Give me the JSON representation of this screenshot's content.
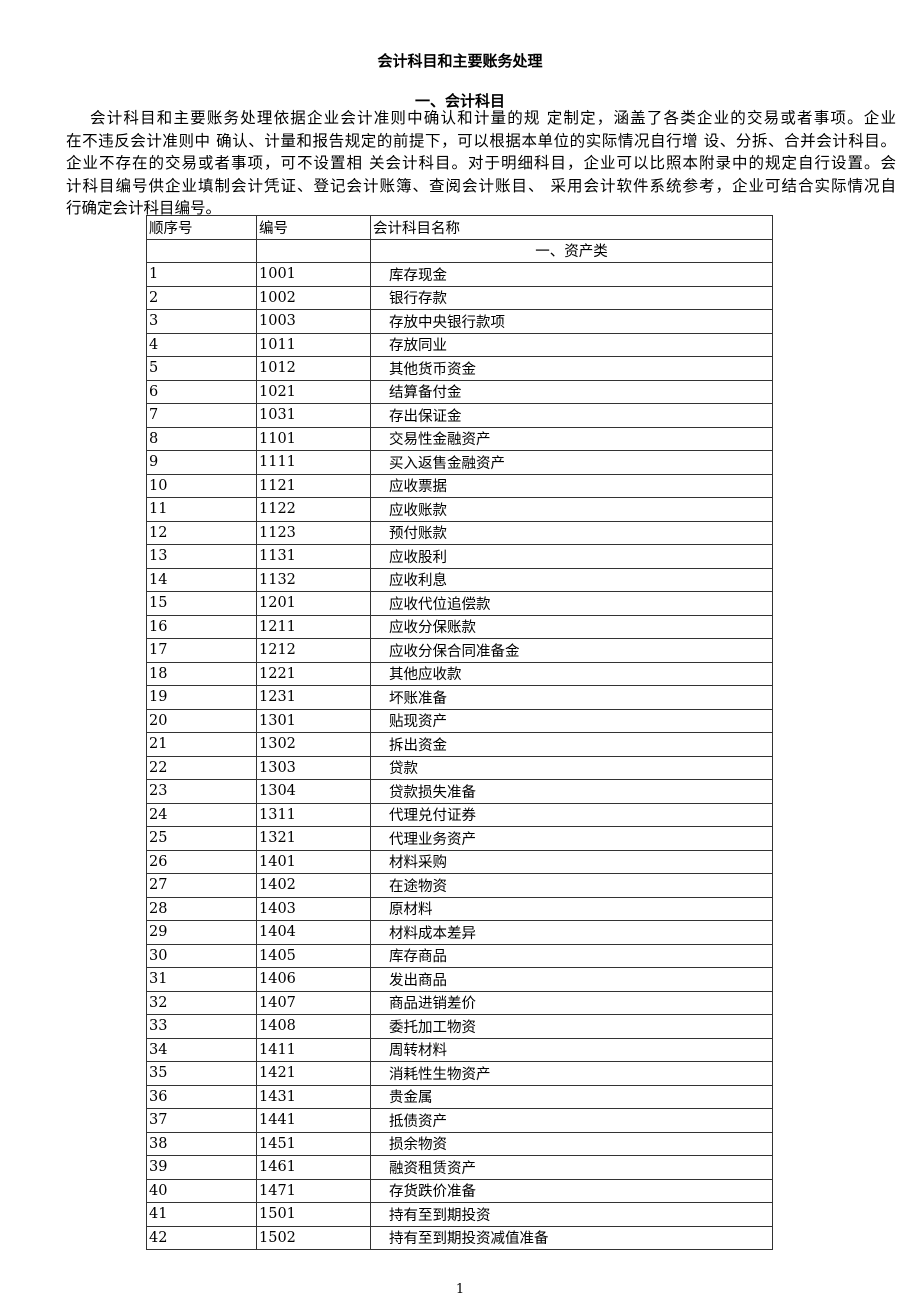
{
  "title": "会计科目和主要账务处理",
  "section_heading": "一、会计科目",
  "paragraph_lines": [
    "会计科目和主要账务处理依据企业会计准则中确认和计量的规 定制定，涵盖了各类企业的交易或者事项。企业",
    "在不违反会计准则中 确认、计量和报告规定的前提下，可以根据本单位的实际情况自行增 设、分拆、合并会计科目。",
    "企业不存在的交易或者事项，可不设置相 关会计科目。对于明细科目，企业可以比照本附录中的规定自行设置。会",
    "计科目编号供企业填制会计凭证、登记会计账簿、查阅会计账目、 采用会计软件系统参考，企业可结合实际情况自",
    "行确定会计科目编号。"
  ],
  "table": {
    "headers": [
      "顺序号",
      "编号",
      "会计科目名称"
    ],
    "category": "一、资产类",
    "rows": [
      [
        "1",
        "1001",
        "库存现金"
      ],
      [
        "2",
        "1002",
        "银行存款"
      ],
      [
        "3",
        "1003",
        "存放中央银行款项"
      ],
      [
        "4",
        "1011",
        "存放同业"
      ],
      [
        "5",
        "1012",
        "其他货币资金"
      ],
      [
        "6",
        "1021",
        "结算备付金"
      ],
      [
        "7",
        "1031",
        "存出保证金"
      ],
      [
        "8",
        "1101",
        "交易性金融资产"
      ],
      [
        "9",
        "1111",
        "买入返售金融资产"
      ],
      [
        "10",
        "1121",
        "应收票据"
      ],
      [
        "11",
        "1122",
        "应收账款"
      ],
      [
        "12",
        "1123",
        "预付账款"
      ],
      [
        "13",
        "1131",
        "应收股利"
      ],
      [
        "14",
        "1132",
        "应收利息"
      ],
      [
        "15",
        "1201",
        "应收代位追偿款"
      ],
      [
        "16",
        "1211",
        "应收分保账款"
      ],
      [
        "17",
        "1212",
        "应收分保合同准备金"
      ],
      [
        "18",
        "1221",
        "其他应收款"
      ],
      [
        "19",
        "1231",
        "坏账准备"
      ],
      [
        "20",
        "1301",
        "贴现资产"
      ],
      [
        "21",
        "1302",
        "拆出资金"
      ],
      [
        "22",
        "1303",
        "贷款"
      ],
      [
        "23",
        "1304",
        "贷款损失准备"
      ],
      [
        "24",
        "1311",
        "代理兑付证券"
      ],
      [
        "25",
        "1321",
        "代理业务资产"
      ],
      [
        "26",
        "1401",
        "材料采购"
      ],
      [
        "27",
        "1402",
        "在途物资"
      ],
      [
        "28",
        "1403",
        "原材料"
      ],
      [
        "29",
        "1404",
        "材料成本差异"
      ],
      [
        "30",
        "1405",
        "库存商品"
      ],
      [
        "31",
        "1406",
        "发出商品"
      ],
      [
        "32",
        "1407",
        "商品进销差价"
      ],
      [
        "33",
        "1408",
        "委托加工物资"
      ],
      [
        "34",
        "1411",
        "周转材料"
      ],
      [
        "35",
        "1421",
        "消耗性生物资产"
      ],
      [
        "36",
        "1431",
        "贵金属"
      ],
      [
        "37",
        "1441",
        "抵债资产"
      ],
      [
        "38",
        "1451",
        "损余物资"
      ],
      [
        "39",
        "1461",
        "融资租赁资产"
      ],
      [
        "40",
        "1471",
        "存货跌价准备"
      ],
      [
        "41",
        "1501",
        "持有至到期投资"
      ],
      [
        "42",
        "1502",
        "持有至到期投资减值准备"
      ]
    ]
  },
  "page_number": "1"
}
